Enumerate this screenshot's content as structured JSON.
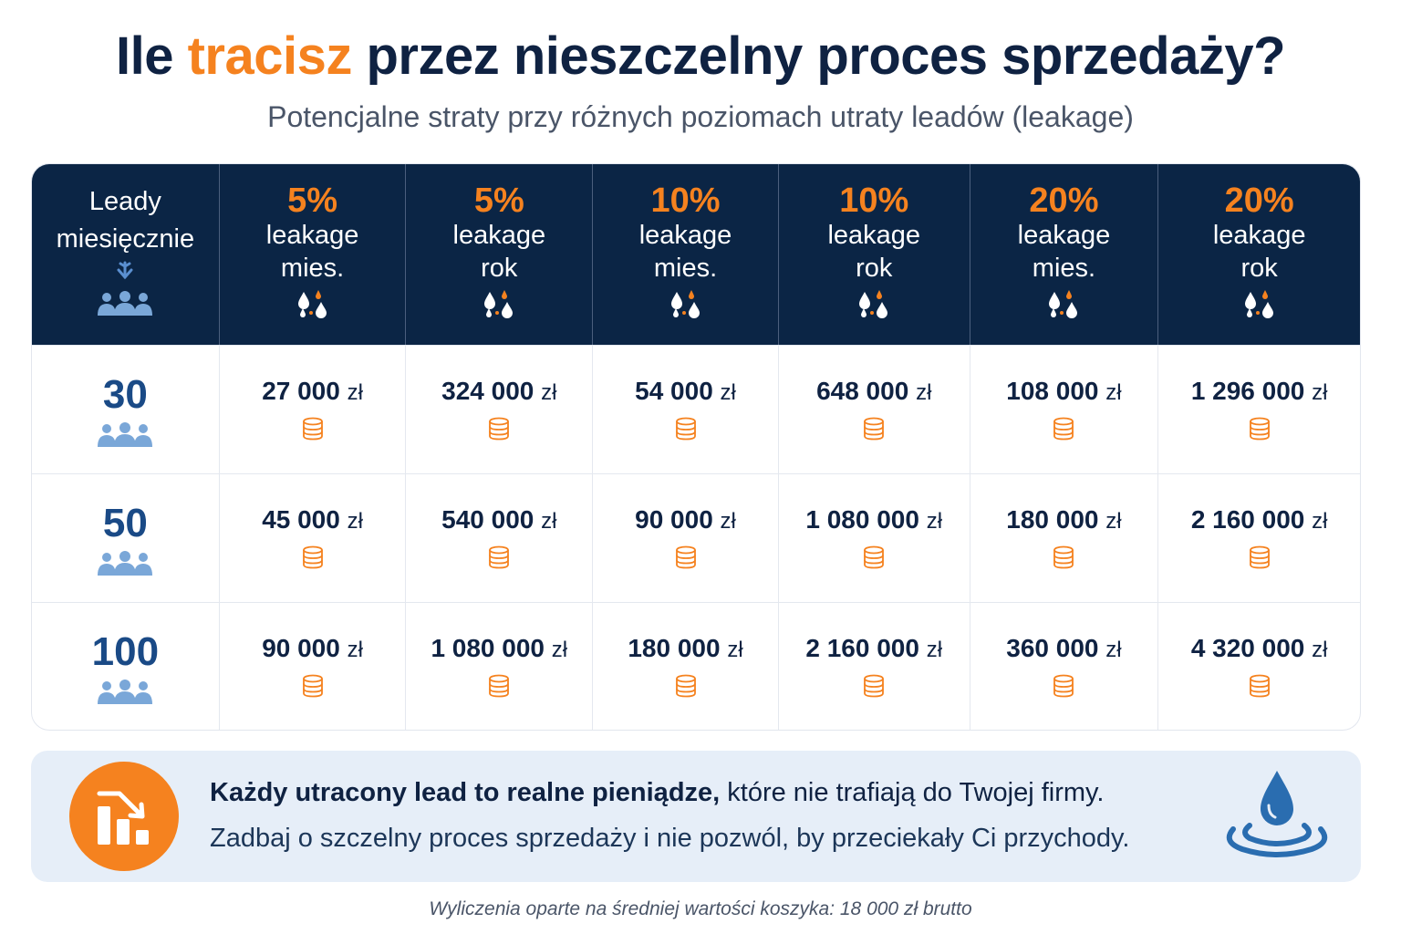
{
  "header": {
    "title_pre": "Ile ",
    "title_accent": "tracisz",
    "title_post": " przez nieszczelny proces sprzedaży?",
    "subtitle": "Potencjalne straty przy różnych poziomach utraty leadów (leakage)"
  },
  "colors": {
    "navy": "#0b2545",
    "accent_orange": "#f5821f",
    "lead_blue": "#1a4a86",
    "icon_blue": "#7aa7d8",
    "callout_bg": "#e6eef8"
  },
  "table": {
    "first_header": {
      "line1": "Leady",
      "line2": "miesięcznie",
      "icons": [
        "arrow-down-icon",
        "people-icon"
      ]
    },
    "columns": [
      {
        "pct": "5%",
        "line1": "leakage",
        "line2": "mies.",
        "icon": "droplets-icon"
      },
      {
        "pct": "5%",
        "line1": "leakage",
        "line2": "rok",
        "icon": "droplets-icon"
      },
      {
        "pct": "10%",
        "line1": "leakage",
        "line2": "mies.",
        "icon": "droplets-icon"
      },
      {
        "pct": "10%",
        "line1": "leakage",
        "line2": "rok",
        "icon": "droplets-icon"
      },
      {
        "pct": "20%",
        "line1": "leakage",
        "line2": "mies.",
        "icon": "droplets-icon"
      },
      {
        "pct": "20%",
        "line1": "leakage",
        "line2": "rok",
        "icon": "droplets-icon"
      }
    ],
    "currency": "zł",
    "rows": [
      {
        "leads": "30",
        "values": [
          "27 000",
          "324 000",
          "54 000",
          "648 000",
          "108 000",
          "1 296 000"
        ]
      },
      {
        "leads": "50",
        "values": [
          "45 000",
          "540 000",
          "90 000",
          "1 080 000",
          "180 000",
          "2 160 000"
        ]
      },
      {
        "leads": "100",
        "values": [
          "90 000",
          "1 080 000",
          "180 000",
          "2 160 000",
          "360 000",
          "4 320 000"
        ]
      }
    ]
  },
  "chart_data": {
    "type": "table",
    "title": "Ile tracisz przez nieszczelny proces sprzedaży?",
    "subtitle": "Potencjalne straty przy różnych poziomach utraty leadów (leakage)",
    "row_header": "Leady miesięcznie",
    "columns": [
      "5% leakage mies.",
      "5% leakage rok",
      "10% leakage mies.",
      "10% leakage rok",
      "20% leakage mies.",
      "20% leakage rok"
    ],
    "rows": [
      30,
      50,
      100
    ],
    "unit": "zł",
    "values": [
      [
        27000,
        324000,
        54000,
        648000,
        108000,
        1296000
      ],
      [
        45000,
        540000,
        90000,
        1080000,
        180000,
        2160000
      ],
      [
        90000,
        1080000,
        180000,
        2160000,
        360000,
        4320000
      ]
    ],
    "basis": "średnia wartość koszyka: 18 000 zł brutto"
  },
  "callout": {
    "bold": "Każdy utracony lead to realne pieniądze,",
    "rest": " które nie trafiają do Twojej firmy.",
    "line2": "Zadbaj o szczelny proces sprzedaży i nie pozwól, by przeciekały Ci przychody.",
    "left_icon": "declining-chart-icon",
    "right_icon": "water-drop-ripple-icon"
  },
  "footnote": "Wyliczenia oparte na średniej wartości koszyka: 18 000 zł brutto"
}
